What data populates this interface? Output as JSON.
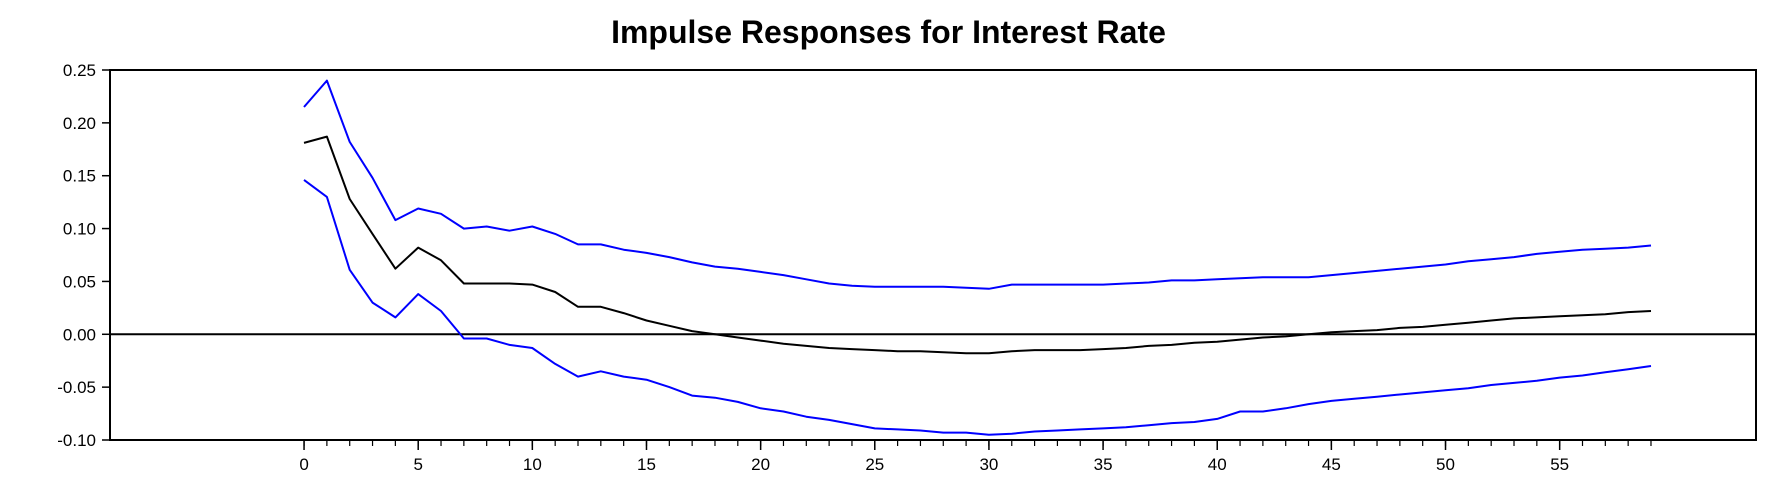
{
  "chart_data": {
    "type": "line",
    "title": "Impulse Responses for Interest Rate",
    "xlabel": "",
    "ylabel": "",
    "xlim": [
      -8.5,
      63.6
    ],
    "ylim": [
      -0.1,
      0.25
    ],
    "x_ticks": [
      0,
      5,
      10,
      15,
      20,
      25,
      30,
      35,
      40,
      45,
      50,
      55
    ],
    "x_tick_labels": [
      "0",
      "5",
      "10",
      "15",
      "20",
      "25",
      "30",
      "35",
      "40",
      "45",
      "50",
      "55"
    ],
    "x_minor_ticks": [
      0,
      1,
      2,
      3,
      4,
      5,
      6,
      7,
      8,
      9,
      10,
      11,
      12,
      13,
      14,
      15,
      16,
      17,
      18,
      19,
      20,
      21,
      22,
      23,
      24,
      25,
      26,
      27,
      28,
      29,
      30,
      31,
      32,
      33,
      34,
      35,
      36,
      37,
      38,
      39,
      40,
      41,
      42,
      43,
      44,
      45,
      46,
      47,
      48,
      49,
      50,
      51,
      52,
      53,
      54,
      55,
      56,
      57,
      58,
      59
    ],
    "y_ticks": [
      -0.1,
      -0.05,
      0.0,
      0.05,
      0.1,
      0.15,
      0.2,
      0.25
    ],
    "y_tick_labels": [
      "-0.10",
      "-0.05",
      "0.00",
      "0.05",
      "0.10",
      "0.15",
      "0.20",
      "0.25"
    ],
    "grid": false,
    "zero_line": true,
    "x": [
      0,
      1,
      2,
      3,
      4,
      5,
      6,
      7,
      8,
      9,
      10,
      11,
      12,
      13,
      14,
      15,
      16,
      17,
      18,
      19,
      20,
      21,
      22,
      23,
      24,
      25,
      26,
      27,
      28,
      29,
      30,
      31,
      32,
      33,
      34,
      35,
      36,
      37,
      38,
      39,
      40,
      41,
      42,
      43,
      44,
      45,
      46,
      47,
      48,
      49,
      50,
      51,
      52,
      53,
      54,
      55,
      56,
      57,
      58,
      59
    ],
    "series": [
      {
        "color": "#0000ff",
        "values": [
          0.215,
          0.24,
          0.182,
          0.148,
          0.108,
          0.119,
          0.114,
          0.1,
          0.102,
          0.098,
          0.102,
          0.095,
          0.085,
          0.085,
          0.08,
          0.077,
          0.073,
          0.068,
          0.064,
          0.062,
          0.059,
          0.056,
          0.052,
          0.048,
          0.046,
          0.045,
          0.045,
          0.045,
          0.045,
          0.044,
          0.043,
          0.047,
          0.047,
          0.047,
          0.047,
          0.047,
          0.048,
          0.049,
          0.051,
          0.051,
          0.052,
          0.053,
          0.054,
          0.054,
          0.054,
          0.056,
          0.058,
          0.06,
          0.062,
          0.064,
          0.066,
          0.069,
          0.071,
          0.073,
          0.076,
          0.078,
          0.08,
          0.081,
          0.082,
          0.084
        ]
      },
      {
        "color": "#000000",
        "values": [
          0.181,
          0.187,
          0.128,
          0.095,
          0.062,
          0.082,
          0.07,
          0.048,
          0.048,
          0.048,
          0.047,
          0.04,
          0.026,
          0.026,
          0.02,
          0.013,
          0.008,
          0.003,
          0.0,
          -0.003,
          -0.006,
          -0.009,
          -0.011,
          -0.013,
          -0.014,
          -0.015,
          -0.016,
          -0.016,
          -0.017,
          -0.018,
          -0.018,
          -0.016,
          -0.015,
          -0.015,
          -0.015,
          -0.014,
          -0.013,
          -0.011,
          -0.01,
          -0.008,
          -0.007,
          -0.005,
          -0.003,
          -0.002,
          0.0,
          0.002,
          0.003,
          0.004,
          0.006,
          0.007,
          0.009,
          0.011,
          0.013,
          0.015,
          0.016,
          0.017,
          0.018,
          0.019,
          0.021,
          0.022
        ]
      },
      {
        "color": "#0000ff",
        "values": [
          0.146,
          0.13,
          0.061,
          0.03,
          0.016,
          0.038,
          0.022,
          -0.004,
          -0.004,
          -0.01,
          -0.013,
          -0.028,
          -0.04,
          -0.035,
          -0.04,
          -0.043,
          -0.05,
          -0.058,
          -0.06,
          -0.064,
          -0.07,
          -0.073,
          -0.078,
          -0.081,
          -0.085,
          -0.089,
          -0.09,
          -0.091,
          -0.093,
          -0.093,
          -0.095,
          -0.094,
          -0.092,
          -0.091,
          -0.09,
          -0.089,
          -0.088,
          -0.086,
          -0.084,
          -0.083,
          -0.08,
          -0.073,
          -0.073,
          -0.07,
          -0.066,
          -0.063,
          -0.061,
          -0.059,
          -0.057,
          -0.055,
          -0.053,
          -0.051,
          -0.048,
          -0.046,
          -0.044,
          -0.041,
          -0.039,
          -0.036,
          -0.033,
          -0.03
        ]
      }
    ]
  }
}
